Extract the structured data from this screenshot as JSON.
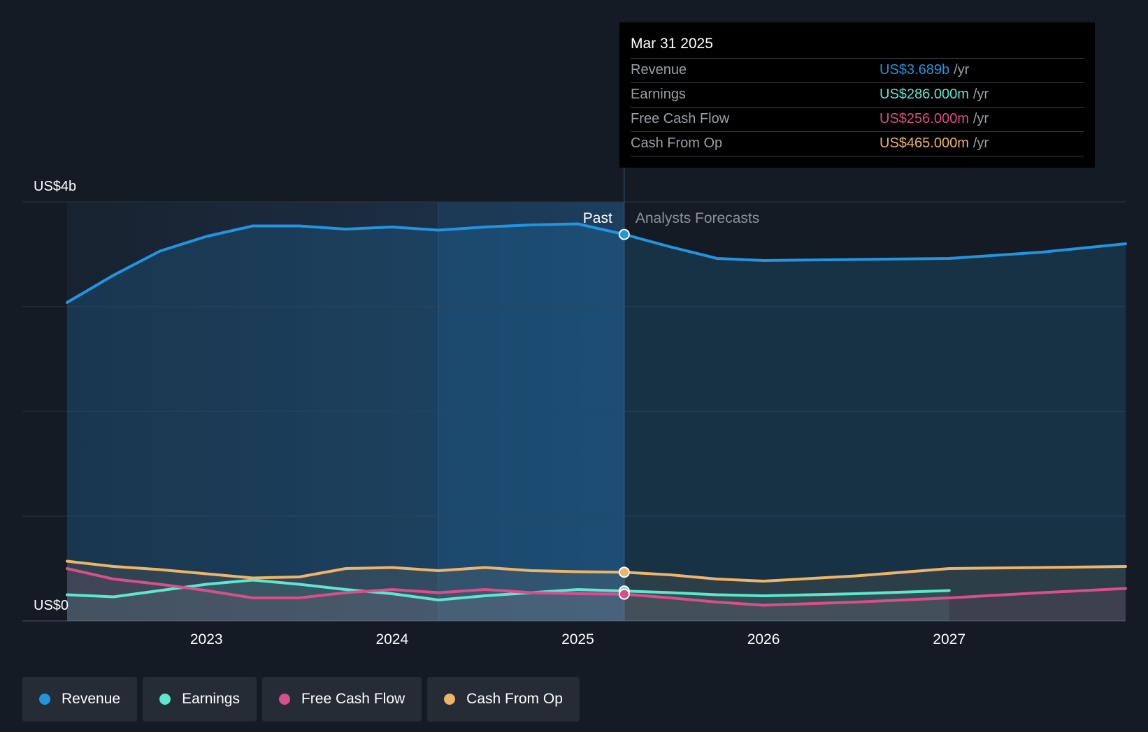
{
  "tooltip": {
    "date": "Mar 31 2025",
    "rows": [
      {
        "label": "Revenue",
        "value": "US$3.689b",
        "unit": "/yr",
        "color": "#2394df"
      },
      {
        "label": "Earnings",
        "value": "US$286.000m",
        "unit": "/yr",
        "color": "#5ee6cf"
      },
      {
        "label": "Free Cash Flow",
        "value": "US$256.000m",
        "unit": "/yr",
        "color": "#d84f8b"
      },
      {
        "label": "Cash From Op",
        "value": "US$465.000m",
        "unit": "/yr",
        "color": "#eeb469"
      }
    ]
  },
  "legend": [
    {
      "label": "Revenue",
      "color": "#2394df"
    },
    {
      "label": "Earnings",
      "color": "#5ee6cf"
    },
    {
      "label": "Free Cash Flow",
      "color": "#d84f8b"
    },
    {
      "label": "Cash From Op",
      "color": "#eeb469"
    }
  ],
  "chart_data": {
    "type": "area",
    "y_top_label": "US$4b",
    "y_bottom_label": "US$0",
    "ylim": [
      0,
      4000
    ],
    "xlim": [
      2022.25,
      2027.95
    ],
    "xticks": [
      2023,
      2024,
      2025,
      2026,
      2027
    ],
    "past_label": "Past",
    "forecast_label": "Analysts Forecasts",
    "divider_x": 2025.25,
    "highlight_range": [
      2024.25,
      2025.25
    ],
    "grid": true,
    "series": [
      {
        "name": "Revenue",
        "color": "#2394df",
        "marker_value": 3689,
        "x": [
          2022.25,
          2022.5,
          2022.75,
          2023.0,
          2023.25,
          2023.5,
          2023.75,
          2024.0,
          2024.25,
          2024.5,
          2024.75,
          2025.0,
          2025.25,
          2025.5,
          2025.75,
          2026.0,
          2026.5,
          2027.0,
          2027.5,
          2027.95
        ],
        "y": [
          3040,
          3300,
          3530,
          3670,
          3770,
          3770,
          3740,
          3760,
          3730,
          3760,
          3780,
          3790,
          3689,
          3570,
          3460,
          3440,
          3450,
          3460,
          3520,
          3600
        ]
      },
      {
        "name": "Earnings",
        "color": "#5ee6cf",
        "marker_value": 286,
        "x": [
          2022.25,
          2022.5,
          2022.75,
          2023.0,
          2023.25,
          2023.5,
          2023.75,
          2024.0,
          2024.25,
          2024.5,
          2024.75,
          2025.0,
          2025.25,
          2025.5,
          2025.75,
          2026.0,
          2026.5,
          2027.0
        ],
        "y": [
          250,
          230,
          290,
          350,
          390,
          350,
          300,
          260,
          200,
          240,
          270,
          300,
          286,
          270,
          250,
          240,
          260,
          290
        ]
      },
      {
        "name": "Free Cash Flow",
        "color": "#d84f8b",
        "marker_value": 256,
        "x": [
          2022.25,
          2022.5,
          2022.75,
          2023.0,
          2023.25,
          2023.5,
          2023.75,
          2024.0,
          2024.25,
          2024.5,
          2024.75,
          2025.0,
          2025.25,
          2025.5,
          2025.75,
          2026.0,
          2026.5,
          2027.0,
          2027.5,
          2027.95
        ],
        "y": [
          500,
          400,
          350,
          290,
          220,
          220,
          270,
          300,
          270,
          300,
          270,
          260,
          256,
          220,
          180,
          150,
          180,
          220,
          270,
          310
        ]
      },
      {
        "name": "Cash From Op",
        "color": "#eeb469",
        "marker_value": 465,
        "x": [
          2022.25,
          2022.5,
          2022.75,
          2023.0,
          2023.25,
          2023.5,
          2023.75,
          2024.0,
          2024.25,
          2024.5,
          2024.75,
          2025.0,
          2025.25,
          2025.5,
          2025.75,
          2026.0,
          2026.5,
          2027.0,
          2027.5,
          2027.95
        ],
        "y": [
          570,
          520,
          490,
          450,
          410,
          420,
          500,
          510,
          480,
          510,
          480,
          470,
          465,
          440,
          400,
          380,
          430,
          500,
          510,
          520
        ]
      }
    ]
  }
}
